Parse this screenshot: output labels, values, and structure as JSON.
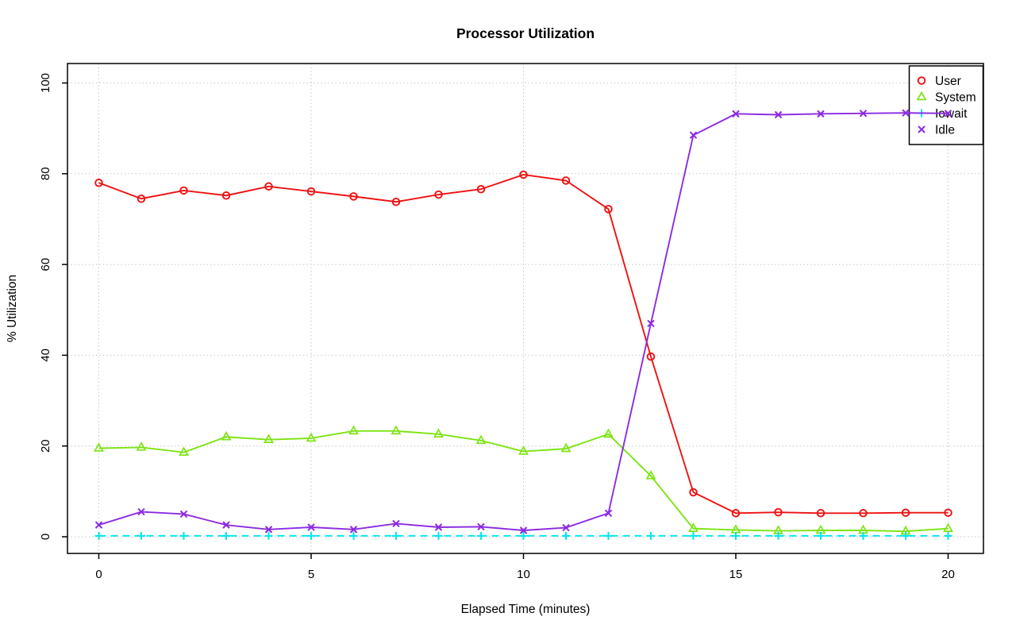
{
  "chart_data": {
    "type": "line",
    "title": "Processor Utilization",
    "xlabel": "Elapsed Time (minutes)",
    "ylabel": "% Utilization",
    "xlim": [
      0,
      20
    ],
    "ylim": [
      0,
      100
    ],
    "xticks": [
      0,
      5,
      10,
      15,
      20
    ],
    "yticks": [
      0,
      20,
      40,
      60,
      80,
      100
    ],
    "grid": "dotted-both-axes",
    "grid_color": "#c8c8c8",
    "axis_color": "#000000",
    "background": "#ffffff",
    "legend_position": "top-right",
    "legend_border_color": "#000000",
    "x": [
      0,
      1,
      2,
      3,
      4,
      5,
      6,
      7,
      8,
      9,
      10,
      11,
      12,
      13,
      14,
      15,
      16,
      17,
      18,
      19,
      20
    ],
    "series": [
      {
        "name": "User",
        "color": "#ee1111",
        "marker": "circle",
        "line": "solid",
        "values": [
          78.0,
          74.5,
          76.3,
          75.2,
          77.2,
          76.1,
          75.0,
          73.8,
          75.4,
          76.6,
          79.8,
          78.5,
          72.2,
          39.7,
          9.8,
          5.2,
          5.4,
          5.2,
          5.2,
          5.3,
          5.3
        ]
      },
      {
        "name": "System",
        "color": "#7de414",
        "marker": "triangle",
        "line": "solid",
        "values": [
          19.5,
          19.7,
          18.6,
          22.0,
          21.4,
          21.7,
          23.3,
          23.3,
          22.6,
          21.2,
          18.8,
          19.4,
          22.6,
          13.4,
          1.8,
          1.5,
          1.3,
          1.4,
          1.4,
          1.2,
          1.8
        ]
      },
      {
        "name": "Iowait",
        "color": "#00e6f0",
        "marker": "plus",
        "line": "dashed",
        "values": [
          0.2,
          0.2,
          0.2,
          0.2,
          0.2,
          0.2,
          0.2,
          0.2,
          0.2,
          0.2,
          0.2,
          0.2,
          0.2,
          0.2,
          0.2,
          0.2,
          0.2,
          0.2,
          0.2,
          0.2,
          0.2
        ]
      },
      {
        "name": "Idle",
        "color": "#8c2be2",
        "marker": "x",
        "line": "solid",
        "values": [
          2.6,
          5.5,
          5.0,
          2.6,
          1.6,
          2.1,
          1.6,
          2.9,
          2.1,
          2.2,
          1.4,
          2.0,
          5.2,
          47.0,
          88.5,
          93.2,
          93.0,
          93.2,
          93.3,
          93.4,
          93.3
        ]
      }
    ]
  }
}
